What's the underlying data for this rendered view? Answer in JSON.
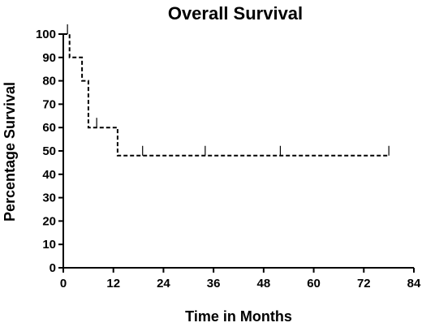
{
  "chart_data": {
    "type": "line",
    "title": "Overall Survival",
    "xlabel": "Time in Months",
    "ylabel": "Percentage Survival",
    "xlim": [
      0,
      84
    ],
    "ylim": [
      0,
      100
    ],
    "xticks": [
      0,
      12,
      24,
      36,
      48,
      60,
      72,
      84
    ],
    "yticks": [
      0,
      10,
      20,
      30,
      40,
      50,
      60,
      70,
      80,
      90,
      100
    ],
    "grid": false,
    "series": [
      {
        "style": "dashed step",
        "color": "#000000",
        "steps": [
          {
            "x": 0,
            "y": 100
          },
          {
            "x": 1.5,
            "y": 100
          },
          {
            "x": 1.5,
            "y": 90
          },
          {
            "x": 4.5,
            "y": 90
          },
          {
            "x": 4.5,
            "y": 80
          },
          {
            "x": 6,
            "y": 80
          },
          {
            "x": 6,
            "y": 60
          },
          {
            "x": 13,
            "y": 60
          },
          {
            "x": 13,
            "y": 48
          },
          {
            "x": 78,
            "y": 48
          }
        ],
        "censored": [
          {
            "x": 1,
            "y": 100
          },
          {
            "x": 8,
            "y": 60
          },
          {
            "x": 19,
            "y": 48
          },
          {
            "x": 34,
            "y": 48
          },
          {
            "x": 52,
            "y": 48
          },
          {
            "x": 78,
            "y": 48
          }
        ]
      }
    ]
  }
}
